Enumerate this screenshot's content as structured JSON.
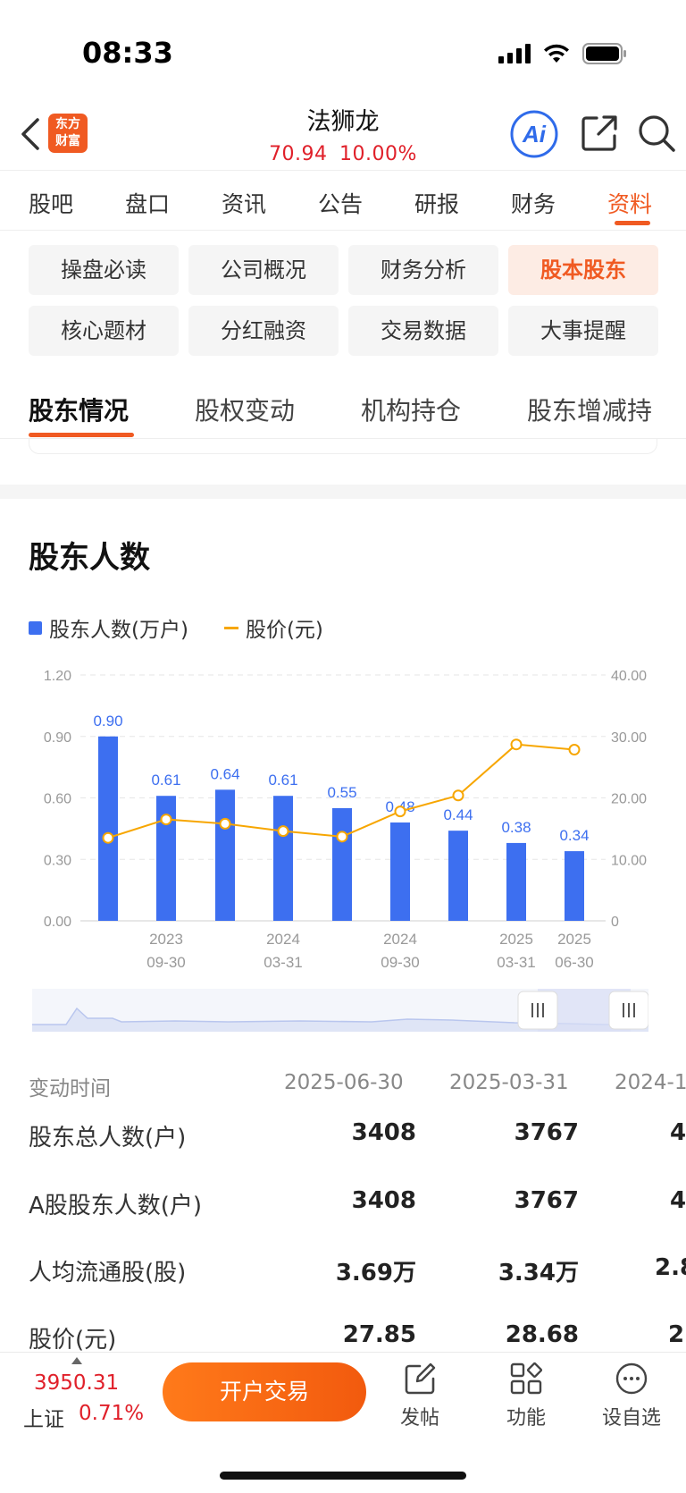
{
  "status": {
    "time": "08:33"
  },
  "header": {
    "logo_line1": "东方",
    "logo_line2": "财富",
    "stock_name": "法狮龙",
    "price": "70.94",
    "change_pct": "10.00%",
    "ai_label": "Ai"
  },
  "tabs": [
    "股吧",
    "盘口",
    "资讯",
    "公告",
    "研报",
    "财务",
    "资料"
  ],
  "active_tab": "资料",
  "chips": [
    "操盘必读",
    "公司概况",
    "财务分析",
    "股本股东",
    "核心题材",
    "分红融资",
    "交易数据",
    "大事提醒"
  ],
  "active_chip": "股本股东",
  "subtabs": [
    "股东情况",
    "股权变动",
    "机构持仓",
    "股东增减持"
  ],
  "section_title": "股东人数",
  "colors": {
    "accent": "#f05a22",
    "bar": "#3d6ff0",
    "line": "#f7a600",
    "up": "#e0202a"
  },
  "chart_data": {
    "type": "bar",
    "series": [
      {
        "name": "股东人数(万户)",
        "type": "bar",
        "values": [
          0.9,
          0.61,
          0.64,
          0.61,
          0.55,
          0.48,
          0.44,
          0.38,
          0.34
        ]
      },
      {
        "name": "股价(元)",
        "type": "line",
        "axis": "right",
        "values": [
          13.5,
          16.5,
          15.8,
          14.6,
          13.7,
          17.8,
          20.4,
          28.7,
          27.85
        ]
      }
    ],
    "data_labels": [
      "0.90",
      "0.61",
      "0.64",
      "0.61",
      "0.55",
      "0.48",
      "0.44",
      "0.38",
      "0.34"
    ],
    "x_tick_labels": [
      {
        "index": 1,
        "line1": "2023",
        "line2": "09-30"
      },
      {
        "index": 3,
        "line1": "2024",
        "line2": "03-31"
      },
      {
        "index": 5,
        "line1": "2024",
        "line2": "09-30"
      },
      {
        "index": 7,
        "line1": "2025",
        "line2": "03-31"
      },
      {
        "index": 8,
        "line1": "2025",
        "line2": "06-30"
      }
    ],
    "y_left_ticks": [
      "0.00",
      "0.30",
      "0.60",
      "0.90",
      "1.20"
    ],
    "y_right_ticks": [
      "0",
      "10.00",
      "20.00",
      "30.00",
      "40.00"
    ],
    "ylim_left": [
      0,
      1.2
    ],
    "ylim_right": [
      0,
      40
    ],
    "grid": true,
    "legend_position": "top-left"
  },
  "table": {
    "header_label": "变动时间",
    "columns": [
      "2025-06-30",
      "2025-03-31",
      "2024-1"
    ],
    "rows": [
      {
        "label": "股东总人数(户)",
        "values": [
          "3408",
          "3767",
          "4"
        ]
      },
      {
        "label": "A股股东人数(户)",
        "values": [
          "3408",
          "3767",
          "4"
        ]
      },
      {
        "label": "人均流通股(股)",
        "values": [
          "3.69万",
          "3.34万",
          "2.8"
        ]
      },
      {
        "label": "股价(元)",
        "values": [
          "27.85",
          "28.68",
          "2("
        ]
      }
    ]
  },
  "bottom": {
    "index_value": "3950.31",
    "index_name": "上证",
    "index_change": "0.71%",
    "open_button": "开户交易",
    "post_label": "发帖",
    "function_label": "功能",
    "watchlist_label": "设自选"
  }
}
